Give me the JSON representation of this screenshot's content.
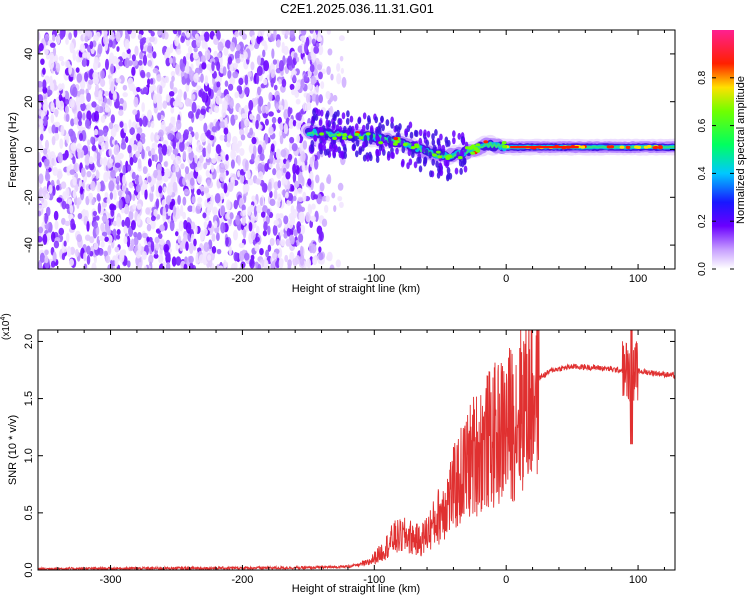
{
  "figure": {
    "title": "C2E1.2025.036.11.31.G01"
  },
  "chart_data": [
    {
      "type": "heatmap",
      "xlabel": "Height of straight line (km)",
      "ylabel": "Frequency (Hz)",
      "xlim": [
        -355,
        128
      ],
      "ylim": [
        -50,
        50
      ],
      "xticks": [
        -300,
        -200,
        -100,
        0,
        100
      ],
      "yticks": [
        -40,
        -20,
        0,
        20,
        40
      ],
      "colorbar": {
        "label": "Normalized spectral amplitude",
        "ticks": [
          0.0,
          0.2,
          0.4,
          0.6,
          0.8
        ],
        "range": [
          0,
          1
        ],
        "colormap": "rainbow (white-violet-blue-cyan-green-yellow-red-magenta)"
      },
      "features": {
        "noise_region_x": [
          -355,
          -140
        ],
        "ridge": [
          {
            "x": -145,
            "y": 7
          },
          {
            "x": -120,
            "y": 6
          },
          {
            "x": -100,
            "y": 5
          },
          {
            "x": -80,
            "y": 3
          },
          {
            "x": -60,
            "y": -1
          },
          {
            "x": -45,
            "y": -3
          },
          {
            "x": -30,
            "y": -1
          },
          {
            "x": -15,
            "y": 2
          },
          {
            "x": 0,
            "y": 1
          },
          {
            "x": 20,
            "y": 1
          },
          {
            "x": 60,
            "y": 1
          },
          {
            "x": 100,
            "y": 1
          },
          {
            "x": 128,
            "y": 1
          }
        ]
      }
    },
    {
      "type": "line",
      "xlabel": "Height of straight line (km)",
      "ylabel": "SNR (10 * v/v)",
      "yscale_label": "(x10",
      "yscale_exp": "4",
      "xlim": [
        -355,
        128
      ],
      "ylim": [
        0,
        2.1
      ],
      "xticks": [
        -300,
        -200,
        -100,
        0,
        100
      ],
      "yticks": [
        0.0,
        0.5,
        1.0,
        1.5,
        2.0
      ],
      "line_color": "#e03030",
      "envelope": [
        {
          "x": -355,
          "y": 0.01
        },
        {
          "x": -150,
          "y": 0.02
        },
        {
          "x": -120,
          "y": 0.03
        },
        {
          "x": -105,
          "y": 0.06
        },
        {
          "x": -95,
          "y": 0.15
        },
        {
          "x": -85,
          "y": 0.28
        },
        {
          "x": -75,
          "y": 0.3
        },
        {
          "x": -65,
          "y": 0.25
        },
        {
          "x": -55,
          "y": 0.4
        },
        {
          "x": -45,
          "y": 0.6
        },
        {
          "x": -35,
          "y": 0.8
        },
        {
          "x": -25,
          "y": 1.0
        },
        {
          "x": -15,
          "y": 1.12
        },
        {
          "x": -5,
          "y": 1.2
        },
        {
          "x": 5,
          "y": 1.3
        },
        {
          "x": 15,
          "y": 1.5
        },
        {
          "x": 25,
          "y": 1.68
        },
        {
          "x": 35,
          "y": 1.75
        },
        {
          "x": 50,
          "y": 1.78
        },
        {
          "x": 70,
          "y": 1.77
        },
        {
          "x": 85,
          "y": 1.75
        },
        {
          "x": 100,
          "y": 1.74
        },
        {
          "x": 115,
          "y": 1.72
        },
        {
          "x": 128,
          "y": 1.7
        }
      ]
    }
  ]
}
